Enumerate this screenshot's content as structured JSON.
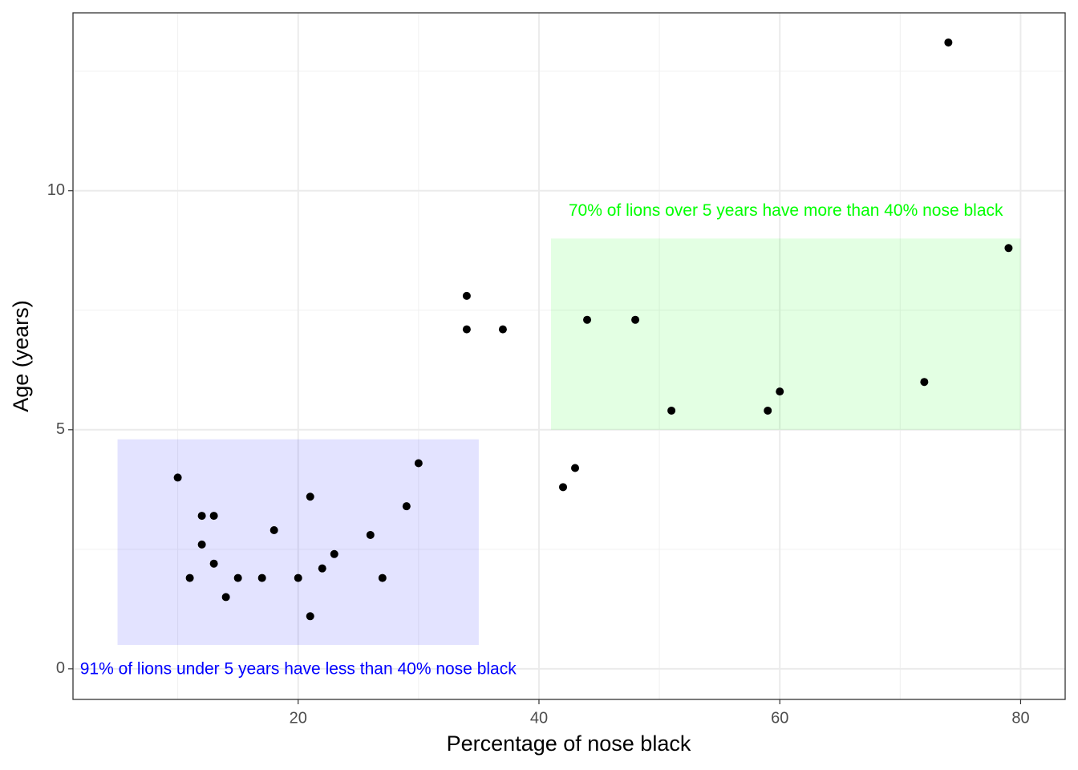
{
  "chart_data": {
    "type": "scatter",
    "x_label": "Percentage of nose black",
    "y_label": "Age (years)",
    "x": [
      74,
      79,
      34,
      34,
      37,
      44,
      48,
      51,
      59,
      60,
      72,
      42,
      43,
      10,
      12,
      13,
      12,
      13,
      11,
      14,
      15,
      17,
      18,
      20,
      21,
      21,
      22,
      23,
      26,
      27,
      29,
      30
    ],
    "values": [
      13.1,
      8.8,
      7.8,
      7.1,
      7.1,
      7.3,
      7.3,
      5.4,
      5.4,
      5.8,
      6.0,
      3.8,
      4.2,
      4.0,
      3.2,
      3.2,
      2.6,
      2.2,
      1.9,
      1.5,
      1.9,
      1.9,
      2.9,
      1.9,
      3.6,
      1.1,
      2.1,
      2.4,
      2.8,
      1.9,
      3.4,
      4.3
    ],
    "color": "#000000",
    "xlim": [
      1.3,
      83.7
    ],
    "ylim": [
      -0.64,
      13.72
    ],
    "xticks": [
      20,
      40,
      60,
      80
    ],
    "yticks": [
      0,
      5,
      10
    ],
    "minor_xticks": [
      10,
      30,
      50,
      70
    ],
    "minor_yticks": [
      2.5,
      7.5,
      12.5
    ],
    "grid": true,
    "regions": [
      {
        "xlim": [
          5,
          35
        ],
        "ylim": [
          0.5,
          4.8
        ],
        "color": "#0000ff",
        "label": "91% of lions under 5 years have less than 40% nose black",
        "label_side": "below"
      },
      {
        "xlim": [
          41,
          80
        ],
        "ylim": [
          5,
          9
        ],
        "color": "#00ff00",
        "label": "70% of lions over 5 years have more than 40% nose black",
        "label_side": "above"
      }
    ]
  }
}
